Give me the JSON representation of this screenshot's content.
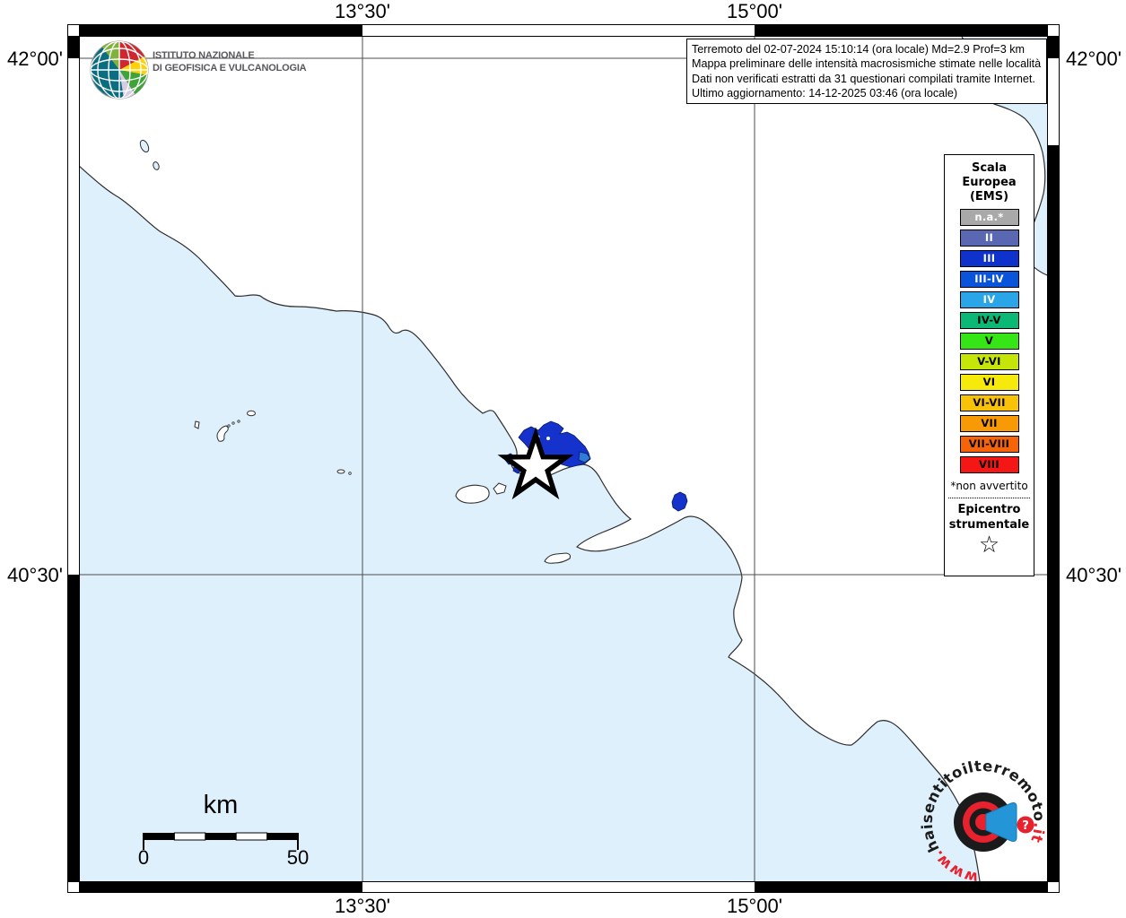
{
  "axes": {
    "top": [
      "13°30'",
      "15°00'"
    ],
    "bottom": [
      "13°30'",
      "15°00'"
    ],
    "left": [
      "42°00'",
      "40°30'"
    ],
    "right": [
      "42°00'",
      "40°30'"
    ]
  },
  "info_box": {
    "line1": "Terremoto del 02-07-2024 15:10:14 (ora locale) Md=2.9 Prof=3 km",
    "line2": "Mappa preliminare delle intensità macrosismiche stimate nelle località",
    "line3": "Dati non verificati estratti da 31 questionari compilati tramite Internet.",
    "line4": "Ultimo aggiornamento: 14-12-2025 03:46 (ora locale)"
  },
  "ingv_logo": {
    "line1": "ISTITUTO NAZIONALE",
    "line2": "DI GEOFISICA E VULCANOLOGIA"
  },
  "legend": {
    "title_lines": [
      "Scala",
      "Europea",
      "(EMS)"
    ],
    "items": [
      {
        "label": "n.a.*",
        "color": "#a9a9a9",
        "text": "#ffffff"
      },
      {
        "label": "II",
        "color": "#5a68b4",
        "text": "#ffffff"
      },
      {
        "label": "III",
        "color": "#1032cc",
        "text": "#ffffff"
      },
      {
        "label": "III-IV",
        "color": "#0a54dc",
        "text": "#ffffff"
      },
      {
        "label": "IV",
        "color": "#2aa6e8",
        "text": "#ffffff"
      },
      {
        "label": "IV-V",
        "color": "#0cb876",
        "text": "#000000"
      },
      {
        "label": "V",
        "color": "#35e515",
        "text": "#000000"
      },
      {
        "label": "V-VI",
        "color": "#c6e60a",
        "text": "#000000"
      },
      {
        "label": "VI",
        "color": "#f5ea0c",
        "text": "#000000"
      },
      {
        "label": "VI-VII",
        "color": "#f7c208",
        "text": "#000000"
      },
      {
        "label": "VII",
        "color": "#f79a06",
        "text": "#000000"
      },
      {
        "label": "VII-VIII",
        "color": "#f56408",
        "text": "#000000"
      },
      {
        "label": "VIII",
        "color": "#f51616",
        "text": "#000000"
      }
    ],
    "footnote": "*non avvertito",
    "epicenter_lines": [
      "Epicentro",
      "strumentale"
    ],
    "epicenter_symbol": "☆"
  },
  "scale_bar": {
    "unit": "km",
    "start": "0",
    "end": "50"
  },
  "watermark": {
    "prefix": "www.",
    "main": "haisentitoilterremoto",
    "suffix": ".it",
    "question": "?"
  },
  "colors": {
    "sea": "#def0fb",
    "land": "#ffffff",
    "intensity_iii": "#1532cd",
    "intensity_iii_iv": "#2e7cd8",
    "frame_black": "#000000"
  }
}
